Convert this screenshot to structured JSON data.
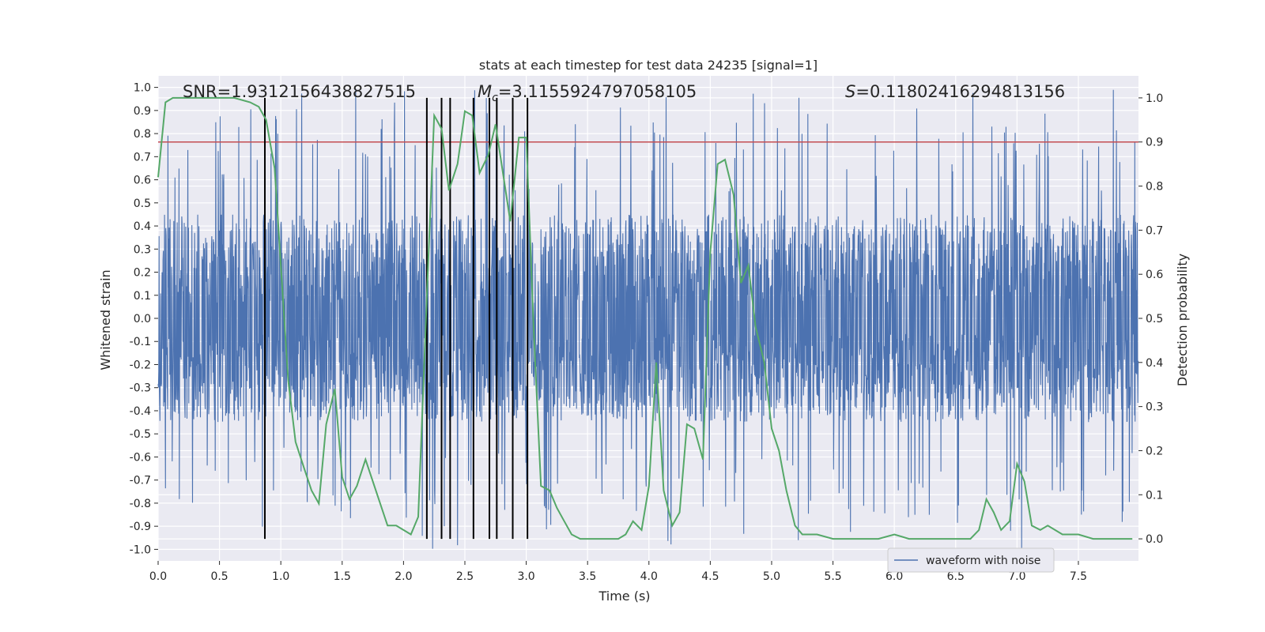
{
  "chart_data": {
    "type": "line",
    "title": "stats at each timestep for test data 24235 [signal=1]",
    "xlabel": "Time (s)",
    "ylabel": "Whitened strain",
    "y2label": "Detection probability",
    "xlim": [
      0.0,
      7.99
    ],
    "ylim": [
      -1.05,
      1.05
    ],
    "y2lim": [
      -0.05,
      1.05
    ],
    "xticks": [
      "0.0",
      "0.5",
      "1.0",
      "1.5",
      "2.0",
      "2.5",
      "3.0",
      "3.5",
      "4.0",
      "4.5",
      "5.0",
      "5.5",
      "6.0",
      "6.5",
      "7.0",
      "7.5"
    ],
    "yticks": [
      "1.0",
      "0.9",
      "0.8",
      "0.7",
      "0.6",
      "0.5",
      "0.4",
      "0.3",
      "0.2",
      "0.1",
      "0.0",
      "-0.1",
      "-0.2",
      "-0.3",
      "-0.4",
      "-0.5",
      "-0.6",
      "-0.7",
      "-0.8",
      "-0.9",
      "-1.0"
    ],
    "y2ticks": [
      "1.0",
      "0.9",
      "0.8",
      "0.7",
      "0.6",
      "0.5",
      "0.4",
      "0.3",
      "0.2",
      "0.1",
      "0.0"
    ],
    "grid": true,
    "stats": {
      "snr": "SNR=1.9312156438827515",
      "mc_symbol": "M",
      "mc_subscript": "c",
      "mc_value": "=3.1155924797058105",
      "s_symbol": "S",
      "s_value": "=0.11802416294813156"
    },
    "threshold": 0.9,
    "event_lines_x": [
      0.87,
      2.19,
      2.31,
      2.38,
      2.57,
      2.7,
      2.76,
      2.89,
      3.01
    ],
    "noise_envelope": {
      "typical_max": 0.45,
      "typical_min": -0.45,
      "peak_max": 1.0,
      "peak_min": -1.0
    },
    "series": [
      {
        "name": "waveform with noise",
        "color": "#4c72b0",
        "axis": "left"
      },
      {
        "name": "detection probability",
        "color": "#55a868",
        "axis": "right",
        "x": [
          0.0,
          0.06,
          0.12,
          0.25,
          0.5,
          0.62,
          0.75,
          0.82,
          0.88,
          0.95,
          1.0,
          1.06,
          1.12,
          1.19,
          1.25,
          1.31,
          1.37,
          1.44,
          1.5,
          1.56,
          1.62,
          1.69,
          1.75,
          1.81,
          1.87,
          1.94,
          2.0,
          2.06,
          2.12,
          2.19,
          2.25,
          2.31,
          2.37,
          2.44,
          2.5,
          2.56,
          2.62,
          2.69,
          2.75,
          2.81,
          2.87,
          2.94,
          3.0,
          3.06,
          3.12,
          3.19,
          3.25,
          3.31,
          3.37,
          3.44,
          3.5,
          3.62,
          3.75,
          3.81,
          3.87,
          3.94,
          4.0,
          4.06,
          4.12,
          4.19,
          4.25,
          4.31,
          4.37,
          4.44,
          4.5,
          4.56,
          4.62,
          4.69,
          4.75,
          4.81,
          4.87,
          4.94,
          5.0,
          5.06,
          5.12,
          5.19,
          5.25,
          5.37,
          5.5,
          5.62,
          5.75,
          5.87,
          6.0,
          6.12,
          6.25,
          6.37,
          6.5,
          6.62,
          6.69,
          6.75,
          6.81,
          6.87,
          6.94,
          7.0,
          7.06,
          7.12,
          7.19,
          7.25,
          7.31,
          7.37,
          7.44,
          7.5,
          7.62,
          7.75,
          7.87,
          7.94
        ],
        "values": [
          0.82,
          0.99,
          1.0,
          1.0,
          1.0,
          1.0,
          0.99,
          0.98,
          0.95,
          0.84,
          0.62,
          0.36,
          0.22,
          0.16,
          0.11,
          0.08,
          0.26,
          0.34,
          0.14,
          0.09,
          0.12,
          0.18,
          0.13,
          0.08,
          0.03,
          0.03,
          0.02,
          0.01,
          0.05,
          0.55,
          0.96,
          0.93,
          0.79,
          0.85,
          0.97,
          0.96,
          0.83,
          0.87,
          0.94,
          0.83,
          0.72,
          0.91,
          0.91,
          0.48,
          0.12,
          0.11,
          0.07,
          0.04,
          0.01,
          0.0,
          0.0,
          0.0,
          0.0,
          0.01,
          0.04,
          0.02,
          0.12,
          0.4,
          0.11,
          0.03,
          0.06,
          0.26,
          0.25,
          0.18,
          0.65,
          0.85,
          0.86,
          0.78,
          0.58,
          0.62,
          0.48,
          0.4,
          0.25,
          0.2,
          0.11,
          0.03,
          0.01,
          0.01,
          0.0,
          0.0,
          0.0,
          0.0,
          0.01,
          0.0,
          0.0,
          0.0,
          0.0,
          0.0,
          0.02,
          0.09,
          0.06,
          0.02,
          0.04,
          0.17,
          0.13,
          0.03,
          0.02,
          0.03,
          0.02,
          0.01,
          0.01,
          0.01,
          0.0,
          0.0,
          0.0,
          0.0
        ]
      }
    ],
    "legend": {
      "position": "lower-right",
      "entries": [
        "waveform with noise"
      ]
    }
  }
}
